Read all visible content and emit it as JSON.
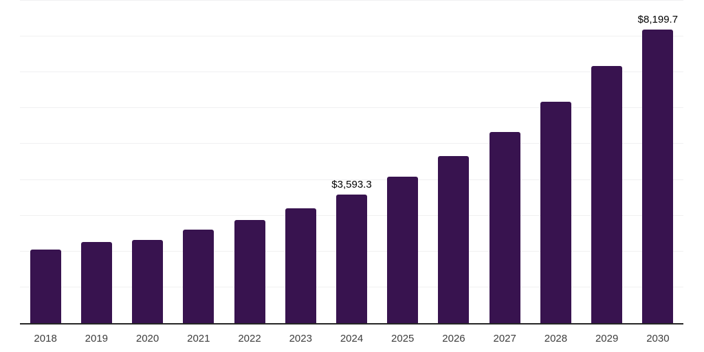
{
  "chart_style": {
    "background": "#ffffff",
    "bar_color": "#38134F",
    "gridline_color": "#f0f0f1",
    "axis_line_color": "#262626",
    "tick_label_color": "#3d3d3d",
    "value_label_color": "#000000"
  },
  "chart_data": {
    "type": "bar",
    "title": "",
    "xlabel": "",
    "ylabel": "",
    "categories": [
      "2018",
      "2019",
      "2020",
      "2021",
      "2022",
      "2023",
      "2024",
      "2025",
      "2026",
      "2027",
      "2028",
      "2029",
      "2030"
    ],
    "values": [
      2060,
      2260,
      2330,
      2610,
      2870,
      3200,
      3593.3,
      4090,
      4660,
      5340,
      6170,
      7170,
      8199.7
    ],
    "value_labels": [
      null,
      null,
      null,
      null,
      null,
      null,
      "$3,593.3",
      null,
      null,
      null,
      null,
      null,
      "$8,199.7"
    ],
    "ylim": [
      0,
      9000
    ],
    "gridline_step": 1000,
    "grid": true,
    "legend": false,
    "y_axis_labels_visible": false
  }
}
